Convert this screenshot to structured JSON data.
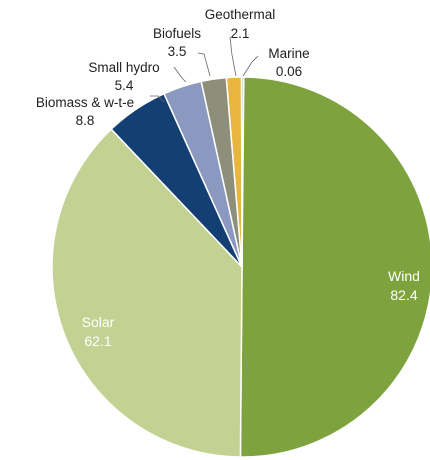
{
  "chart_data": {
    "type": "pie",
    "title": "",
    "start_angle_deg": 0,
    "direction": "clockwise",
    "series": [
      {
        "name": "Wind",
        "value_label": "82.4",
        "value": 82.4,
        "color": "#7ea33e",
        "label_position": "inside"
      },
      {
        "name": "Solar",
        "value_label": "62.1",
        "value": 62.1,
        "color": "#c3d192",
        "label_position": "inside"
      },
      {
        "name": "Biomass & w-t-e",
        "value_label": "8.8",
        "value": 8.8,
        "color": "#143f73",
        "label_position": "outside"
      },
      {
        "name": "Small hydro",
        "value_label": "5.4",
        "value": 5.4,
        "color": "#8b98bf",
        "label_position": "outside"
      },
      {
        "name": "Biofuels",
        "value_label": "3.5",
        "value": 3.5,
        "color": "#8d8f7b",
        "label_position": "outside"
      },
      {
        "name": "Geothermal",
        "value_label": "2.1",
        "value": 2.1,
        "color": "#e8b53f",
        "label_position": "outside"
      },
      {
        "name": "Marine",
        "value_label": "0.06",
        "value": 0.06,
        "color": "#c9c9c9",
        "label_position": "outside"
      }
    ]
  }
}
